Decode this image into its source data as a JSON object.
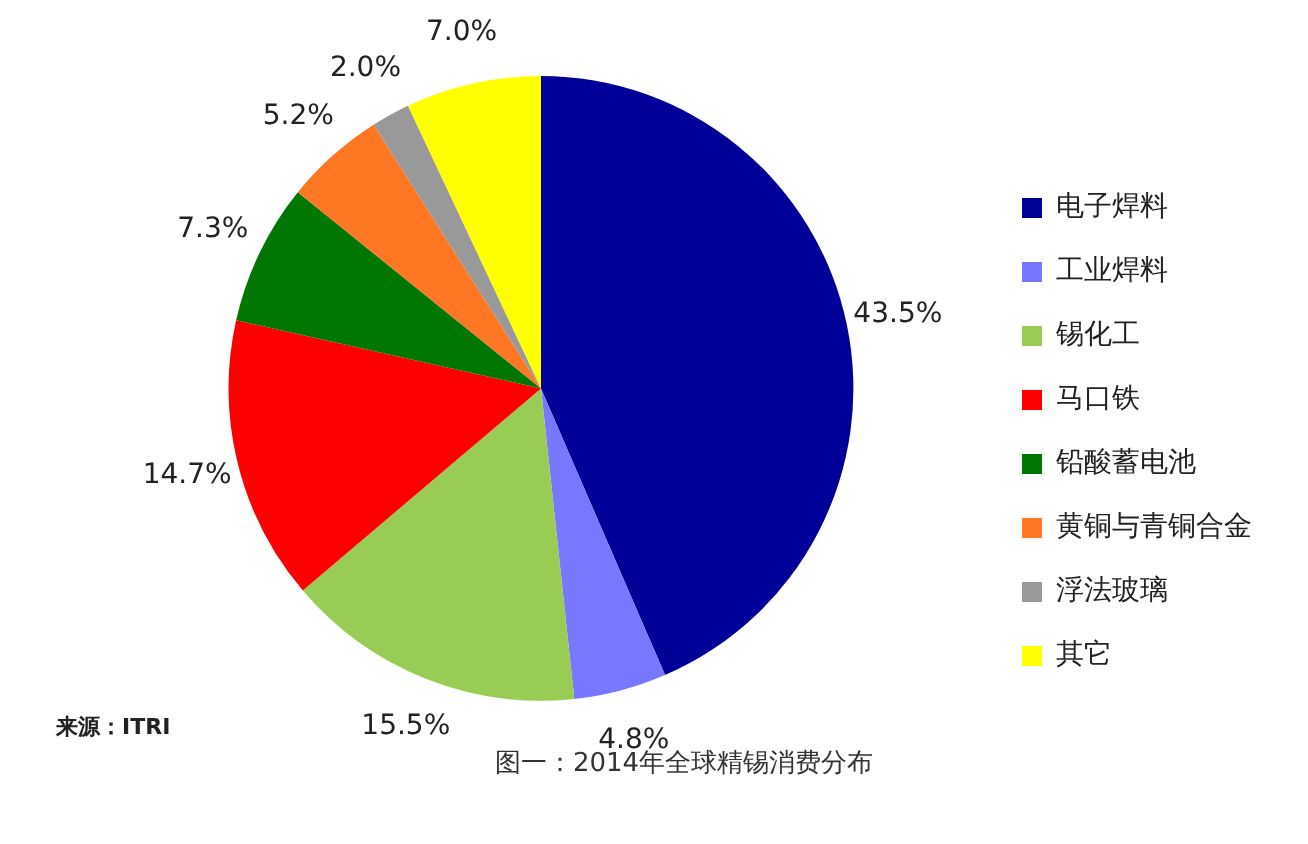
{
  "chart_data": {
    "type": "pie",
    "title": "图一：2014年全球精锡消费分布",
    "categories": [
      "电子焊料",
      "工业焊料",
      "锡化工",
      "马口铁",
      "铅酸蓄电池",
      "黄铜与青铜合金",
      "浮法玻璃",
      "其它"
    ],
    "values": [
      43.5,
      4.8,
      15.5,
      14.7,
      7.3,
      5.2,
      2.0,
      7.0
    ],
    "colors": [
      "#000099",
      "#7777ff",
      "#99cc55",
      "#ff0000",
      "#007700",
      "#ff7722",
      "#999999",
      "#ffff00"
    ],
    "value_labels": [
      "43.5%",
      "4.8%",
      "15.5%",
      "14.7%",
      "7.3%",
      "5.2%",
      "2.0%",
      "7.0%"
    ],
    "legend": "right",
    "annotations": [
      "来源：ITRI"
    ]
  }
}
